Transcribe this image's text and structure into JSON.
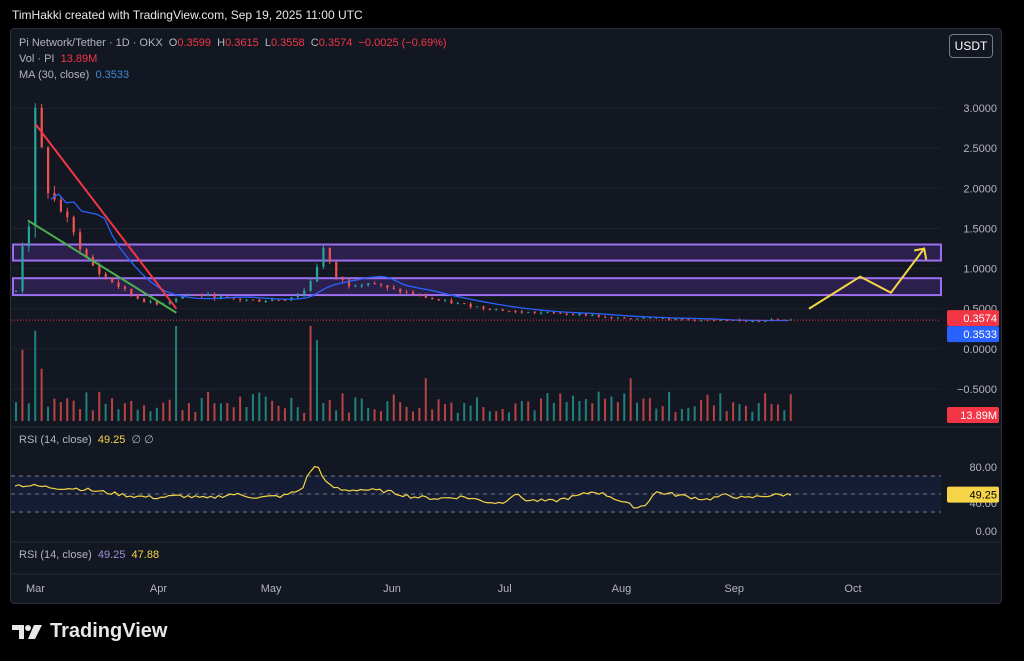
{
  "caption": "TimHakki created with TradingView.com, Sep 19, 2025 11:00 UTC",
  "currency_button": "USDT",
  "legend": {
    "symbol": "Pi Network/Tether · 1D · OKX",
    "o_label": "O",
    "o": "0.3599",
    "h_label": "H",
    "h": "0.3615",
    "l_label": "L",
    "l": "0.3558",
    "c_label": "C",
    "c": "0.3574",
    "change": "−0.0025 (−0.69%)",
    "vol_label": "Vol · PI",
    "vol": "13.89M",
    "ma_label": "MA (30, close)",
    "ma": "0.3533",
    "rsi_label": "RSI (14, close)",
    "rsi": "49.25",
    "rsi_extra": "∅ ∅",
    "rsi2_label": "RSI (14, close)",
    "rsi2_a": "49.25",
    "rsi2_b": "47.88"
  },
  "brand": "TradingView",
  "chart_data": {
    "type": "candlestick",
    "price_axis": {
      "ticks": [
        "3.0000",
        "2.5000",
        "2.0000",
        "1.5000",
        "1.0000",
        "0.5000",
        "0.0000",
        "−0.5000"
      ],
      "ylim": [
        -0.6,
        3.3
      ]
    },
    "rsi_axis": {
      "ticks": [
        "80.00",
        "40.00",
        "0.00"
      ],
      "ylim": [
        0,
        100
      ],
      "bands": [
        70,
        30
      ],
      "mid": 50
    },
    "x_months": [
      "Mar",
      "Apr",
      "May",
      "Jun",
      "Jul",
      "Aug",
      "Sep",
      "Oct"
    ],
    "last_price": {
      "label": "0.3574",
      "value": 0.3574,
      "color": "#f23645"
    },
    "ma_value": {
      "label": "0.3533",
      "value": 0.3533,
      "color": "#2962ff"
    },
    "volume_tag": {
      "label": "13.89M",
      "color": "#f23645"
    },
    "rsi_tag": {
      "label": "49.25",
      "value": 49.25,
      "color": "#f5d547"
    },
    "price_keypoints": [
      [
        0,
        0.72
      ],
      [
        2,
        1.25
      ],
      [
        5,
        1.55
      ],
      [
        7,
        3.0
      ],
      [
        9,
        2.7
      ],
      [
        12,
        2.0
      ],
      [
        16,
        1.8
      ],
      [
        20,
        1.6
      ],
      [
        26,
        1.2
      ],
      [
        32,
        0.95
      ],
      [
        40,
        0.78
      ],
      [
        48,
        0.62
      ],
      [
        55,
        0.55
      ],
      [
        60,
        0.6
      ],
      [
        66,
        0.68
      ],
      [
        75,
        0.66
      ],
      [
        85,
        0.62
      ],
      [
        95,
        0.6
      ],
      [
        105,
        0.62
      ],
      [
        112,
        0.7
      ],
      [
        117,
        0.95
      ],
      [
        119,
        1.3
      ],
      [
        121,
        1.2
      ],
      [
        124,
        0.92
      ],
      [
        130,
        0.8
      ],
      [
        138,
        0.83
      ],
      [
        145,
        0.75
      ],
      [
        155,
        0.68
      ],
      [
        165,
        0.6
      ],
      [
        175,
        0.55
      ],
      [
        185,
        0.5
      ],
      [
        195,
        0.46
      ],
      [
        205,
        0.45
      ],
      [
        215,
        0.44
      ],
      [
        225,
        0.42
      ],
      [
        232,
        0.38
      ],
      [
        240,
        0.38
      ],
      [
        248,
        0.4
      ],
      [
        256,
        0.37
      ],
      [
        265,
        0.36
      ],
      [
        275,
        0.35
      ],
      [
        285,
        0.35
      ],
      [
        295,
        0.36
      ],
      [
        303,
        0.3574
      ]
    ],
    "rsi_keypoints": [
      [
        0,
        60
      ],
      [
        8,
        59
      ],
      [
        15,
        57
      ],
      [
        25,
        56
      ],
      [
        35,
        52
      ],
      [
        45,
        48
      ],
      [
        55,
        46
      ],
      [
        65,
        48
      ],
      [
        75,
        45
      ],
      [
        85,
        50
      ],
      [
        95,
        46
      ],
      [
        105,
        48
      ],
      [
        112,
        55
      ],
      [
        115,
        75
      ],
      [
        118,
        82
      ],
      [
        122,
        60
      ],
      [
        128,
        54
      ],
      [
        135,
        55
      ],
      [
        145,
        53
      ],
      [
        155,
        47
      ],
      [
        165,
        45
      ],
      [
        175,
        47
      ],
      [
        185,
        41
      ],
      [
        190,
        40
      ],
      [
        195,
        50
      ],
      [
        200,
        43
      ],
      [
        210,
        42
      ],
      [
        220,
        48
      ],
      [
        226,
        53
      ],
      [
        232,
        48
      ],
      [
        238,
        40
      ],
      [
        243,
        35
      ],
      [
        246,
        38
      ],
      [
        250,
        52
      ],
      [
        256,
        50
      ],
      [
        263,
        47
      ],
      [
        270,
        44
      ],
      [
        278,
        49
      ],
      [
        285,
        45
      ],
      [
        292,
        48
      ],
      [
        298,
        49
      ],
      [
        303,
        49.25
      ]
    ],
    "volume_spikes": [
      [
        2,
        0.75
      ],
      [
        7,
        0.95
      ],
      [
        10,
        0.55
      ],
      [
        62,
        1.0
      ],
      [
        115,
        1.0
      ],
      [
        118,
        0.85
      ],
      [
        160,
        0.45
      ],
      [
        240,
        0.45
      ],
      [
        275,
        0.25
      ],
      [
        292,
        0.22
      ]
    ],
    "zones": [
      {
        "from": 1.1,
        "to": 1.3
      },
      {
        "from": 0.67,
        "to": 0.88
      }
    ],
    "trendlines": [
      {
        "from": [
          8,
          2.8
        ],
        "to": [
          63,
          0.5
        ],
        "color": "#f23645"
      },
      {
        "from": [
          5,
          1.6
        ],
        "to": [
          63,
          0.45
        ],
        "color": "#4caf50"
      }
    ],
    "projection": [
      [
        310,
        0.5
      ],
      [
        330,
        0.9
      ],
      [
        342,
        0.7
      ],
      [
        355,
        1.25
      ]
    ],
    "total_days": 360
  }
}
